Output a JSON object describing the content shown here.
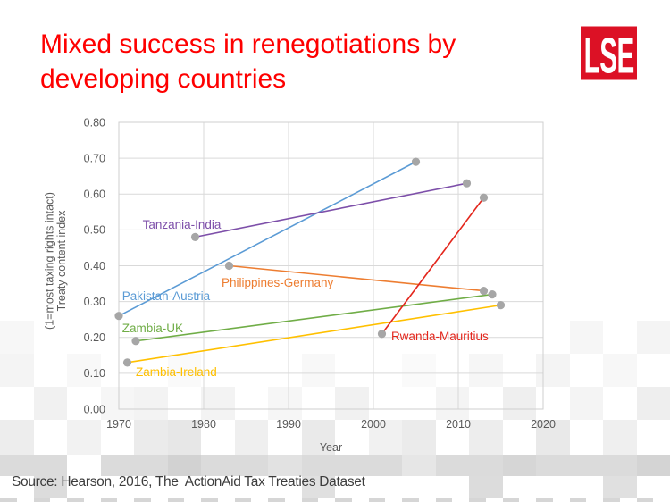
{
  "slide": {
    "title_line1": "Mixed success in renegotiations by",
    "title_line2": "developing countries",
    "title_color": "#FE0000",
    "logo_text": "LSE",
    "logo_bg": "#DC1125",
    "source_text": "Source: Hearson, 2016, The  ActionAid Tax Treaties Dataset",
    "source_color": "#3C3C3C"
  },
  "chart_data": {
    "type": "line",
    "title": "",
    "xlabel": "Year",
    "ylabel_lines": [
      "Treaty content index",
      "(1=most taxing rights intact)"
    ],
    "xlim": [
      1970,
      2020
    ],
    "ylim": [
      0,
      0.8
    ],
    "x_ticks": [
      1970,
      1980,
      1990,
      2000,
      2010,
      2020
    ],
    "y_ticks": [
      0,
      0.1,
      0.2,
      0.3,
      0.4,
      0.5,
      0.6,
      0.7,
      0.8
    ],
    "grid": true,
    "legend": "inline-labels",
    "gridline_color": "#D9D9D9",
    "border_color": "#CFCFCF",
    "tick_label_color": "#595959",
    "marker_color": "#A6A6A6",
    "series": [
      {
        "name": "Pakistan-Austria",
        "color": "#5B9BD5",
        "x": [
          1970,
          2005
        ],
        "y": [
          0.26,
          0.69
        ],
        "label_at": {
          "x": 1970.4,
          "y": 0.304
        }
      },
      {
        "name": "Tanzania-India",
        "color": "#7D4FA9",
        "x": [
          1979,
          2011
        ],
        "y": [
          0.48,
          0.63
        ],
        "label_at": {
          "x": 1972.8,
          "y": 0.503
        }
      },
      {
        "name": "Philippines-Germany",
        "color": "#ED7D31",
        "x": [
          1983,
          2013
        ],
        "y": [
          0.4,
          0.33
        ],
        "label_at": {
          "x": 1982.1,
          "y": 0.341
        }
      },
      {
        "name": "Zambia-UK",
        "color": "#70AD47",
        "x": [
          1972,
          2014
        ],
        "y": [
          0.19,
          0.32
        ],
        "label_at": {
          "x": 1970.4,
          "y": 0.214
        }
      },
      {
        "name": "Zambia-Ireland",
        "color": "#FFC000",
        "x": [
          1971,
          2015
        ],
        "y": [
          0.13,
          0.29
        ],
        "label_at": {
          "x": 1972.0,
          "y": 0.092
        }
      },
      {
        "name": "Rwanda-Mauritius",
        "color": "#E3261C",
        "x": [
          2001,
          2013
        ],
        "y": [
          0.21,
          0.59
        ],
        "label_at": {
          "x": 2002.1,
          "y": 0.192
        }
      }
    ]
  }
}
